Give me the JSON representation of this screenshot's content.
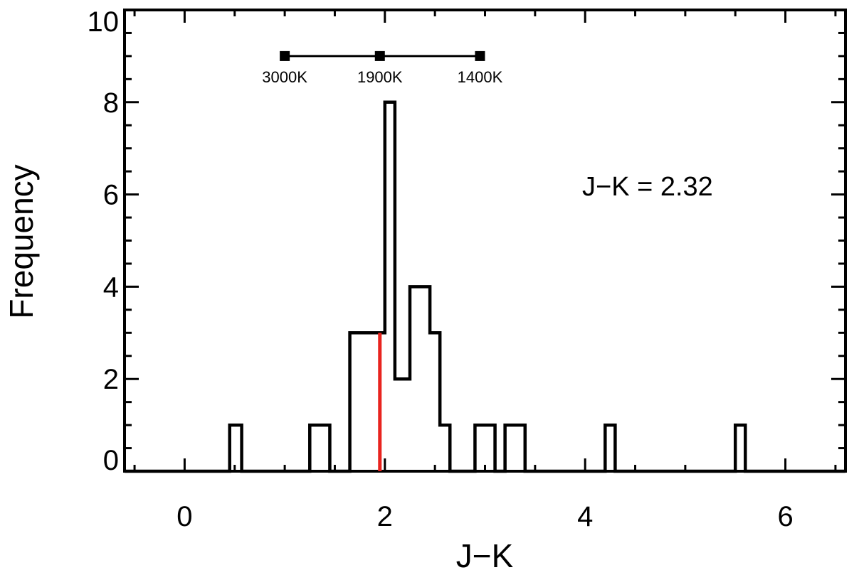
{
  "chart_data": {
    "type": "histogram",
    "xlabel": "J−K",
    "ylabel": "Frequency",
    "xlim": [
      -0.6,
      6.6
    ],
    "ylim": [
      0,
      10
    ],
    "x_ticks": [
      0,
      2,
      4,
      6
    ],
    "y_ticks": [
      0,
      2,
      4,
      6,
      8,
      10
    ],
    "x_tick_labels": [
      "0",
      "2",
      "4",
      "6"
    ],
    "y_tick_labels": [
      "0",
      "2",
      "4",
      "6",
      "8",
      "10"
    ],
    "bins": [
      {
        "x0": 0.45,
        "x1": 0.57,
        "count": 1
      },
      {
        "x0": 1.25,
        "x1": 1.45,
        "count": 1
      },
      {
        "x0": 1.65,
        "x1": 2.0,
        "count": 3
      },
      {
        "x0": 2.0,
        "x1": 2.1,
        "count": 8
      },
      {
        "x0": 2.1,
        "x1": 2.25,
        "count": 2
      },
      {
        "x0": 2.25,
        "x1": 2.45,
        "count": 4
      },
      {
        "x0": 2.45,
        "x1": 2.55,
        "count": 3
      },
      {
        "x0": 2.55,
        "x1": 2.65,
        "count": 1
      },
      {
        "x0": 2.9,
        "x1": 3.1,
        "count": 1
      },
      {
        "x0": 3.2,
        "x1": 3.4,
        "count": 1
      },
      {
        "x0": 4.2,
        "x1": 4.3,
        "count": 1
      },
      {
        "x0": 5.5,
        "x1": 5.6,
        "count": 1
      }
    ],
    "marker_line": {
      "x": 1.95,
      "y_top": 3,
      "color": "#e8231e"
    },
    "annotation": "J−K = 2.32",
    "temperature_scale": {
      "y": 9.0,
      "points": [
        {
          "x": 1.0,
          "label": "3000K"
        },
        {
          "x": 1.95,
          "label": "1900K"
        },
        {
          "x": 2.95,
          "label": "1400K"
        }
      ]
    },
    "colors": {
      "axis": "#000000",
      "bars": "#000000",
      "marker": "#e8231e"
    }
  }
}
